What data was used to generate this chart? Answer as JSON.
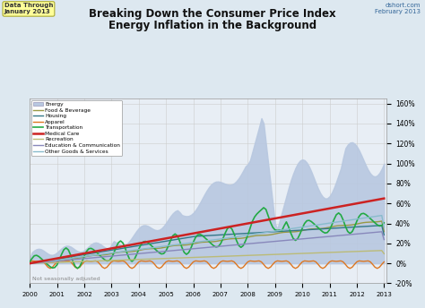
{
  "title_line1": "Breaking Down the Consumer Price Index",
  "title_line2": "Energy Inflation in the Background",
  "subtitle_left": "Data Through\nJanuary 2013",
  "subtitle_right": "dshort.com\nFebruary 2013",
  "note": "Not seasonally adjusted",
  "y_ticks": [
    -20,
    0,
    20,
    40,
    60,
    80,
    100,
    120,
    140,
    160
  ],
  "y_tick_labels": [
    "-20%",
    "0%",
    "20%",
    "40%",
    "60%",
    "80%",
    "100%",
    "120%",
    "140%",
    "160%"
  ],
  "energy_color": "#b8c8e0",
  "food_color": "#999944",
  "housing_color": "#337788",
  "apparel_color": "#dd7722",
  "transport_color": "#22aa44",
  "medical_color": "#cc2222",
  "recreation_color": "#bbbb77",
  "education_color": "#8888bb",
  "other_color": "#88bbcc",
  "bg_color": "#dde8f0",
  "plot_bg": "#e8eef5"
}
